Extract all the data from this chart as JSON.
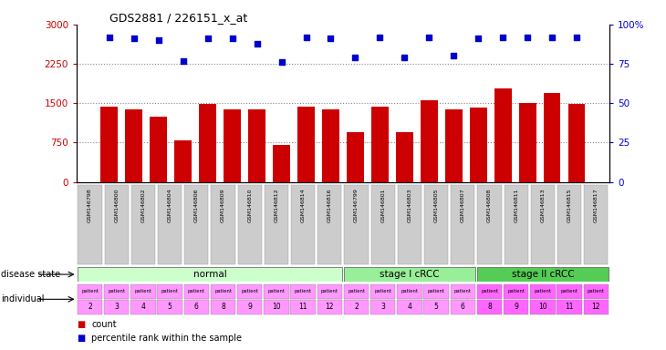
{
  "title": "GDS2881 / 226151_x_at",
  "samples": [
    "GSM146798",
    "GSM146800",
    "GSM146802",
    "GSM146804",
    "GSM146806",
    "GSM146809",
    "GSM146810",
    "GSM146812",
    "GSM146814",
    "GSM146816",
    "GSM146799",
    "GSM146801",
    "GSM146803",
    "GSM146805",
    "GSM146807",
    "GSM146808",
    "GSM146811",
    "GSM146813",
    "GSM146815",
    "GSM146817"
  ],
  "counts": [
    1430,
    1380,
    1250,
    800,
    1480,
    1390,
    1390,
    700,
    1430,
    1390,
    950,
    1430,
    950,
    1560,
    1390,
    1420,
    1790,
    1500,
    1700,
    1480
  ],
  "percentiles": [
    92,
    91,
    90,
    77,
    91,
    91,
    88,
    76,
    92,
    91,
    79,
    92,
    79,
    92,
    80,
    91,
    92,
    92,
    92,
    92
  ],
  "bar_color": "#cc0000",
  "dot_color": "#0000cc",
  "ylim_left": [
    0,
    3000
  ],
  "ylim_right": [
    0,
    100
  ],
  "yticks_left": [
    0,
    750,
    1500,
    2250,
    3000
  ],
  "yticks_right": [
    0,
    25,
    50,
    75,
    100
  ],
  "ytick_labels_right": [
    "0",
    "25",
    "50",
    "75",
    "100%"
  ],
  "grid_values": [
    750,
    1500,
    2250
  ],
  "disease_groups": [
    {
      "label": "normal",
      "start": 0,
      "end": 10,
      "color": "#ccffcc"
    },
    {
      "label": "stage I cRCC",
      "start": 10,
      "end": 15,
      "color": "#99ee99"
    },
    {
      "label": "stage II cRCC",
      "start": 15,
      "end": 20,
      "color": "#55cc55"
    }
  ],
  "individual_numbers": [
    "2",
    "3",
    "4",
    "5",
    "6",
    "8",
    "9",
    "10",
    "11",
    "12",
    "2",
    "3",
    "4",
    "5",
    "6",
    "8",
    "9",
    "10",
    "11",
    "12"
  ],
  "individual_colors": [
    "#ff99ff",
    "#ff99ff",
    "#ff99ff",
    "#ff99ff",
    "#ff99ff",
    "#ff99ff",
    "#ff99ff",
    "#ff99ff",
    "#ff99ff",
    "#ff99ff",
    "#ff99ff",
    "#ff99ff",
    "#ff99ff",
    "#ff99ff",
    "#ff99ff",
    "#ff66ff",
    "#ff66ff",
    "#ff66ff",
    "#ff66ff",
    "#ff66ff"
  ],
  "disease_state_label": "disease state",
  "individual_label": "individual",
  "legend1": "count",
  "legend2": "percentile rank within the sample",
  "legend_count_color": "#cc0000",
  "legend_pct_color": "#0000cc",
  "xtick_bg_color": "#cccccc",
  "plot_bg_color": "#ffffff",
  "fig_bg_color": "#ffffff"
}
